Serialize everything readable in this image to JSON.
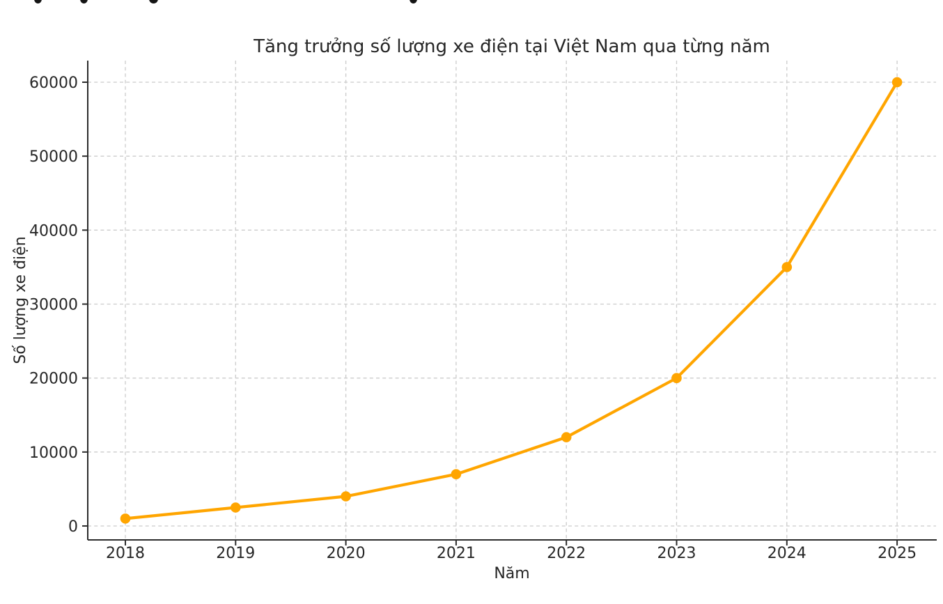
{
  "page": {
    "background": "#ffffff"
  },
  "chart_data": {
    "type": "line",
    "title": "Tăng trưởng số lượng xe điện tại Việt Nam qua từng năm",
    "xlabel": "Năm",
    "ylabel": "Số lượng xe điện",
    "categories": [
      "2018",
      "2019",
      "2020",
      "2021",
      "2022",
      "2023",
      "2024",
      "2025"
    ],
    "values": [
      1000,
      2500,
      4000,
      7000,
      12000,
      20000,
      35000,
      60000
    ],
    "y_ticks": [
      0,
      10000,
      20000,
      30000,
      40000,
      50000,
      60000
    ],
    "ylim": [
      0,
      60000
    ],
    "grid": "dashed-both-axes",
    "legend": "none",
    "line_color": "#FFA500",
    "marker": "circle",
    "marker_radius": 7.3,
    "text_color": "#262626",
    "grid_color": "#cbcbcb",
    "spine_color": "#2b2b2b"
  }
}
